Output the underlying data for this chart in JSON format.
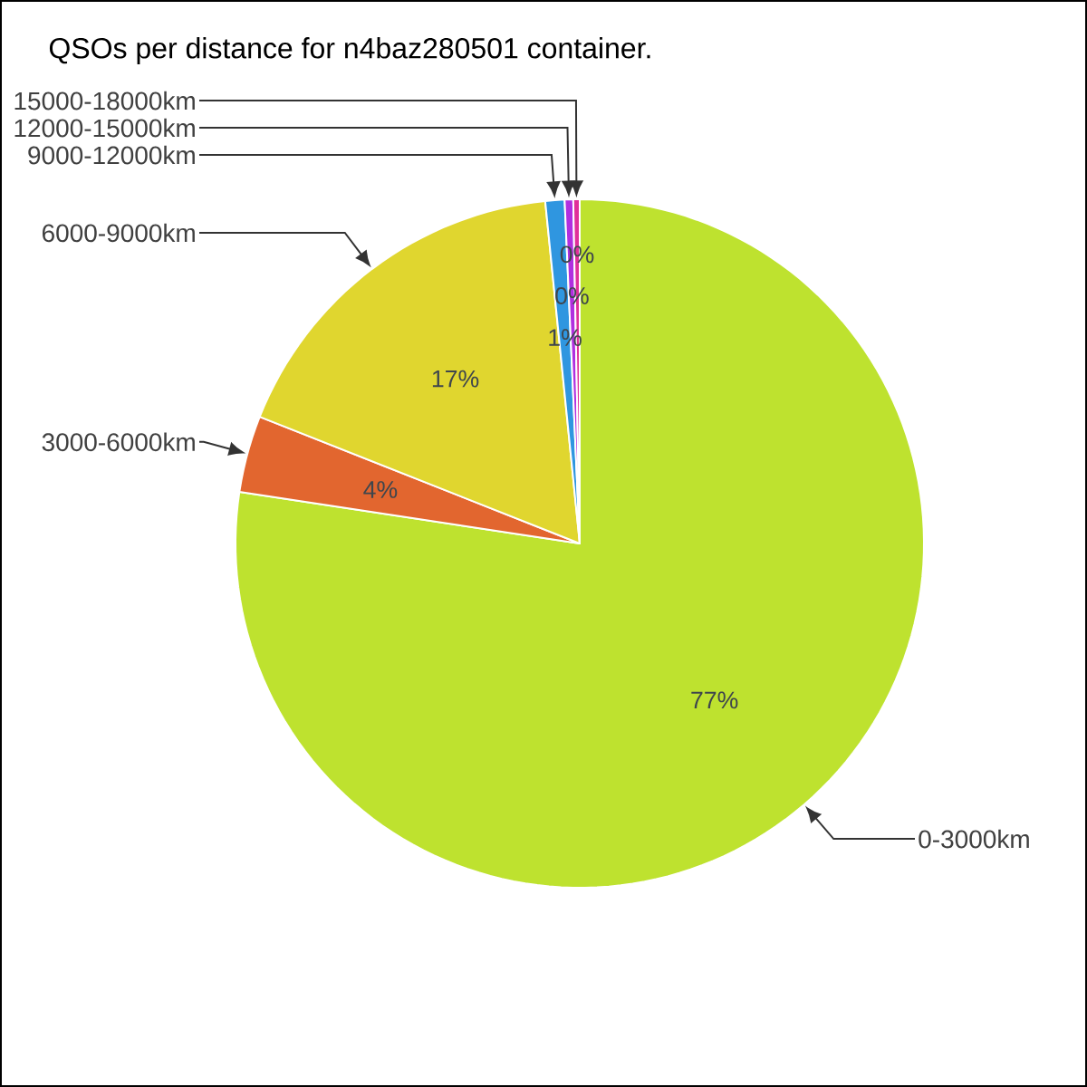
{
  "chart_data": {
    "type": "pie",
    "title": "QSOs per distance for n4baz280501 container.",
    "categories": [
      "0-3000km",
      "3000-6000km",
      "6000-9000km",
      "9000-12000km",
      "12000-15000km",
      "15000-18000km"
    ],
    "values": [
      77.4,
      3.6,
      17.4,
      0.9,
      0.4,
      0.3
    ],
    "colors": [
      "#bee22f",
      "#e2662f",
      "#e0d62f",
      "#2f96e0",
      "#b02fe0",
      "#e02f9a"
    ],
    "value_labels": [
      "77%",
      "4%",
      "17%",
      "1%",
      "0%",
      "0%"
    ]
  }
}
